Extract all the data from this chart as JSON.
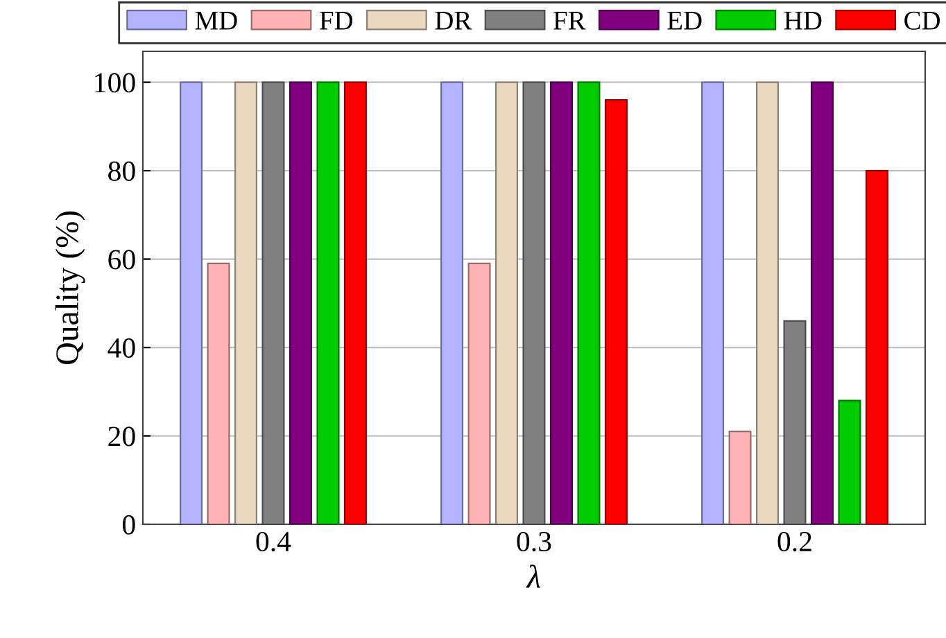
{
  "chart_data": {
    "type": "bar",
    "xlabel": "λ",
    "ylabel": "Quality (%)",
    "categories": [
      "0.4",
      "0.3",
      "0.2"
    ],
    "series": [
      {
        "name": "MD",
        "color": "#b3b3ff",
        "values": [
          100,
          100,
          100
        ]
      },
      {
        "name": "FD",
        "color": "#ffb3b3",
        "values": [
          59,
          59,
          21
        ]
      },
      {
        "name": "DR",
        "color": "#ead8c1",
        "values": [
          100,
          100,
          100
        ]
      },
      {
        "name": "FR",
        "color": "#808080",
        "values": [
          100,
          100,
          46
        ]
      },
      {
        "name": "ED",
        "color": "#800080",
        "values": [
          100,
          100,
          100
        ]
      },
      {
        "name": "HD",
        "color": "#00cc00",
        "values": [
          100,
          100,
          28
        ]
      },
      {
        "name": "CD",
        "color": "#ff0000",
        "values": [
          100,
          96,
          80
        ]
      }
    ],
    "ylim": [
      0,
      107
    ],
    "yticks": [
      0,
      20,
      40,
      60,
      80,
      100
    ],
    "grid": "y",
    "legend": "top"
  }
}
